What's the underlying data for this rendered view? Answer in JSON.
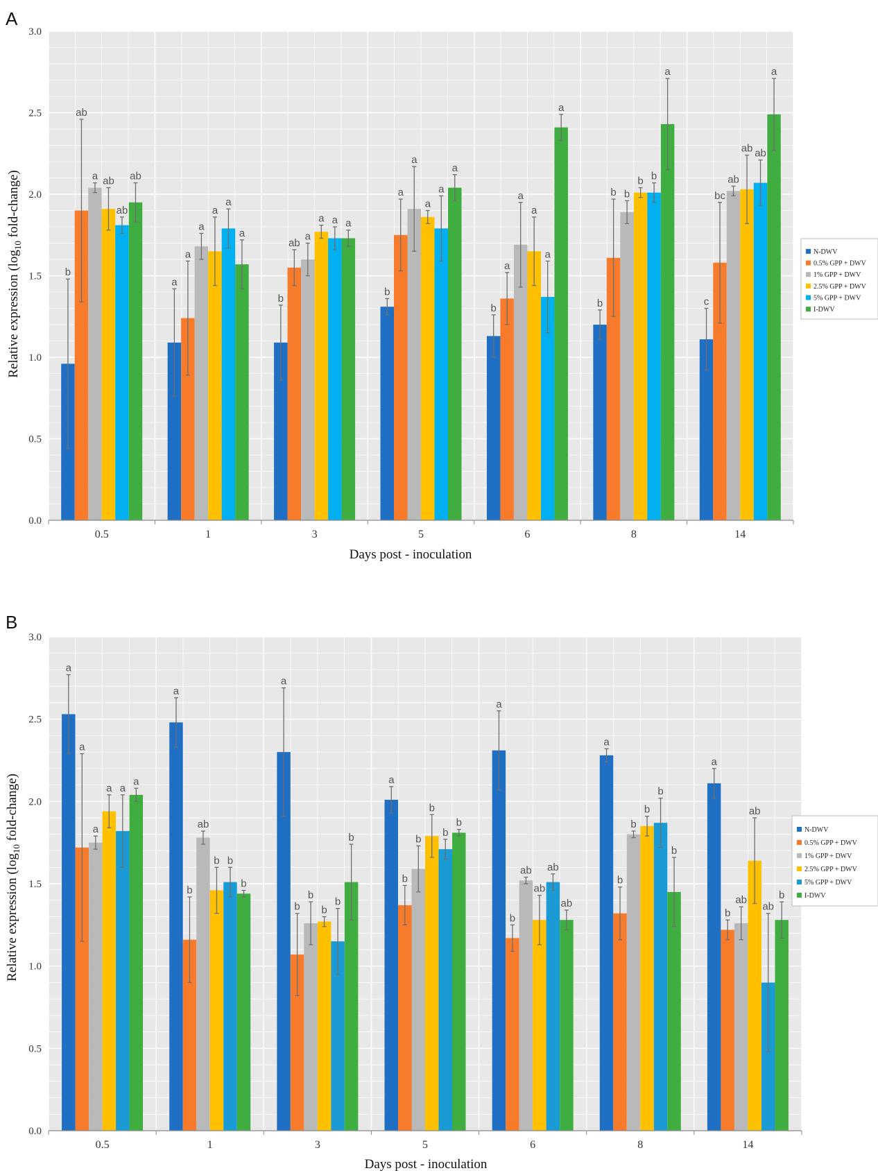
{
  "chart_data": [
    {
      "panel_label": "A",
      "type": "bar",
      "xlabel": "Days post - inoculation",
      "ylabel_prefix": "Relative expression (log",
      "ylabel_sub": "10",
      "ylabel_suffix": " fold-change)",
      "ylim": [
        0,
        3.0
      ],
      "yticks": [
        "0.0",
        "0.5",
        "1.0",
        "1.5",
        "2.0",
        "2.5",
        "3.0"
      ],
      "grid": true,
      "legend_position": "right",
      "categories": [
        "0.5",
        "1",
        "3",
        "5",
        "6",
        "8",
        "14"
      ],
      "series": [
        {
          "name": "N-DWV",
          "color": "#1f6fc5",
          "values": [
            0.96,
            1.09,
            1.09,
            1.31,
            1.13,
            1.2,
            1.11
          ],
          "errors": [
            0.52,
            0.33,
            0.23,
            0.05,
            0.13,
            0.09,
            0.19
          ],
          "labels": [
            "b",
            "a",
            "b",
            "b",
            "b",
            "b",
            "c"
          ]
        },
        {
          "name": "0.5% GPP + DWV",
          "color": "#f77b2a",
          "values": [
            1.9,
            1.24,
            1.55,
            1.75,
            1.36,
            1.61,
            1.58
          ],
          "errors": [
            0.56,
            0.35,
            0.11,
            0.22,
            0.16,
            0.36,
            0.37
          ],
          "labels": [
            "ab",
            "a",
            "ab",
            "a",
            "a",
            "b",
            "bc"
          ]
        },
        {
          "name": "1% GPP + DWV",
          "color": "#b9b9b9",
          "values": [
            2.04,
            1.68,
            1.6,
            1.91,
            1.69,
            1.89,
            2.02
          ],
          "errors": [
            0.03,
            0.08,
            0.1,
            0.26,
            0.26,
            0.07,
            0.03
          ],
          "labels": [
            "a",
            "a",
            "a",
            "a",
            "a",
            "b",
            "ab"
          ]
        },
        {
          "name": "2.5% GPP + DWV",
          "color": "#ffc000",
          "values": [
            1.91,
            1.65,
            1.77,
            1.86,
            1.65,
            2.01,
            2.03
          ],
          "errors": [
            0.13,
            0.21,
            0.04,
            0.04,
            0.21,
            0.03,
            0.21
          ],
          "labels": [
            "ab",
            "a",
            "a",
            "a",
            "a",
            "b",
            "ab"
          ]
        },
        {
          "name": "5% GPP + DWV",
          "color": "#00b0f0",
          "values": [
            1.81,
            1.79,
            1.73,
            1.79,
            1.37,
            2.01,
            2.07
          ],
          "errors": [
            0.05,
            0.12,
            0.07,
            0.2,
            0.22,
            0.06,
            0.14
          ],
          "labels": [
            "ab",
            "a",
            "a",
            "a",
            "a",
            "b",
            "ab"
          ]
        },
        {
          "name": "I-DWV",
          "color": "#3fad3f",
          "values": [
            1.95,
            1.57,
            1.73,
            2.04,
            2.41,
            2.43,
            2.49
          ],
          "errors": [
            0.12,
            0.15,
            0.05,
            0.08,
            0.08,
            0.28,
            0.22
          ],
          "labels": [
            "ab",
            "a",
            "a",
            "a",
            "a",
            "a",
            "a"
          ]
        }
      ]
    },
    {
      "panel_label": "B",
      "type": "bar",
      "xlabel": "Days post - inoculation",
      "ylabel_prefix": "Relative expression (log",
      "ylabel_sub": "10",
      "ylabel_suffix": " fold-change)",
      "ylim": [
        0,
        3.0
      ],
      "yticks": [
        "0.0",
        "0.5",
        "1.0",
        "1.5",
        "2.0",
        "2.5",
        "3.0"
      ],
      "grid": true,
      "legend_position": "right",
      "categories": [
        "0.5",
        "1",
        "3",
        "5",
        "6",
        "8",
        "14"
      ],
      "series": [
        {
          "name": "N-DWV",
          "color": "#1f6fc5",
          "values": [
            2.53,
            2.48,
            2.3,
            2.01,
            2.31,
            2.28,
            2.11
          ],
          "errors": [
            0.24,
            0.15,
            0.39,
            0.08,
            0.24,
            0.04,
            0.09
          ],
          "labels": [
            "a",
            "a",
            "a",
            "a",
            "a",
            "a",
            "a"
          ]
        },
        {
          "name": "0.5% GPP + DWV",
          "color": "#f77b2a",
          "values": [
            1.72,
            1.16,
            1.07,
            1.37,
            1.17,
            1.32,
            1.22
          ],
          "errors": [
            0.57,
            0.26,
            0.25,
            0.12,
            0.08,
            0.16,
            0.06
          ],
          "labels": [
            "a",
            "b",
            "b",
            "b",
            "b",
            "b",
            "b"
          ]
        },
        {
          "name": "1% GPP + DWV",
          "color": "#b9b9b9",
          "values": [
            1.75,
            1.78,
            1.26,
            1.59,
            1.52,
            1.8,
            1.26
          ],
          "errors": [
            0.04,
            0.04,
            0.13,
            0.14,
            0.02,
            0.02,
            0.1
          ],
          "labels": [
            "a",
            "ab",
            "b",
            "b",
            "ab",
            "b",
            "ab"
          ]
        },
        {
          "name": "2.5% GPP + DWV",
          "color": "#ffc000",
          "values": [
            1.94,
            1.46,
            1.27,
            1.79,
            1.28,
            1.85,
            1.64
          ],
          "errors": [
            0.1,
            0.14,
            0.03,
            0.13,
            0.15,
            0.06,
            0.26
          ],
          "labels": [
            "a",
            "b",
            "b",
            "b",
            "ab",
            "b",
            "ab"
          ]
        },
        {
          "name": "5% GPP + DWV",
          "color": "#1b9bd6",
          "values": [
            1.82,
            1.51,
            1.15,
            1.71,
            1.51,
            1.87,
            0.9
          ],
          "errors": [
            0.22,
            0.09,
            0.2,
            0.06,
            0.05,
            0.15,
            0.42
          ],
          "labels": [
            "a",
            "b",
            "b",
            "b",
            "ab",
            "b",
            "ab"
          ]
        },
        {
          "name": "I-DWV",
          "color": "#3fad3f",
          "values": [
            2.04,
            1.44,
            1.51,
            1.81,
            1.28,
            1.45,
            1.28
          ],
          "errors": [
            0.04,
            0.02,
            0.23,
            0.02,
            0.06,
            0.21,
            0.11
          ],
          "labels": [
            "a",
            "b",
            "b",
            "b",
            "ab",
            "b",
            "b"
          ]
        }
      ]
    }
  ]
}
